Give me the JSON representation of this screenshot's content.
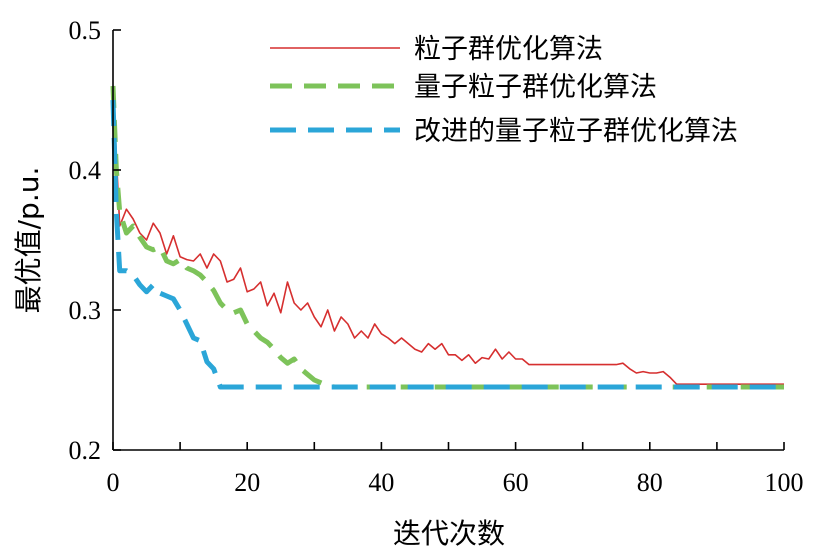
{
  "chart_data": {
    "type": "line",
    "title": "",
    "xlabel": "迭代次数",
    "ylabel": "最优值/p.u.",
    "xlim": [
      0,
      100
    ],
    "ylim": [
      0.2,
      0.5
    ],
    "xticks": [
      0,
      20,
      40,
      60,
      80,
      100
    ],
    "yticks": [
      0.2,
      0.3,
      0.4,
      0.5
    ],
    "xtick_labels": [
      "0",
      "20",
      "40",
      "60",
      "80",
      "100"
    ],
    "ytick_labels": [
      "0.2",
      "0.3",
      "0.4",
      "0.5"
    ],
    "grid": false,
    "legend_position": "top-right",
    "series": [
      {
        "name": "粒子群优化算法",
        "color": "#d62f2f",
        "style": "solid",
        "x": [
          0,
          1,
          2,
          3,
          4,
          5,
          6,
          7,
          8,
          9,
          10,
          11,
          12,
          13,
          14,
          15,
          16,
          17,
          18,
          19,
          20,
          21,
          22,
          23,
          24,
          25,
          26,
          27,
          28,
          29,
          30,
          31,
          32,
          33,
          34,
          35,
          36,
          37,
          38,
          39,
          40,
          41,
          42,
          43,
          44,
          45,
          46,
          47,
          48,
          49,
          50,
          51,
          52,
          53,
          54,
          55,
          56,
          57,
          58,
          59,
          60,
          61,
          62,
          65,
          70,
          75,
          76,
          77,
          78,
          79,
          80,
          81,
          82,
          83,
          84,
          90,
          100
        ],
        "y": [
          0.46,
          0.36,
          0.372,
          0.365,
          0.355,
          0.35,
          0.362,
          0.355,
          0.34,
          0.353,
          0.338,
          0.336,
          0.335,
          0.34,
          0.33,
          0.34,
          0.335,
          0.32,
          0.322,
          0.33,
          0.313,
          0.315,
          0.32,
          0.303,
          0.312,
          0.298,
          0.32,
          0.305,
          0.3,
          0.305,
          0.295,
          0.288,
          0.3,
          0.285,
          0.295,
          0.29,
          0.28,
          0.285,
          0.28,
          0.29,
          0.283,
          0.28,
          0.276,
          0.28,
          0.276,
          0.272,
          0.27,
          0.276,
          0.272,
          0.276,
          0.268,
          0.268,
          0.264,
          0.268,
          0.262,
          0.266,
          0.265,
          0.272,
          0.265,
          0.27,
          0.265,
          0.265,
          0.261,
          0.261,
          0.261,
          0.261,
          0.262,
          0.258,
          0.255,
          0.256,
          0.255,
          0.255,
          0.256,
          0.252,
          0.247,
          0.247,
          0.247
        ]
      },
      {
        "name": "量子粒子群优化算法",
        "color": "#7dc35a",
        "style": "dashed",
        "x": [
          0,
          0.5,
          1,
          2,
          3,
          4,
          5,
          6,
          7,
          8,
          9,
          10,
          11,
          12,
          13,
          14,
          15,
          16,
          17,
          18,
          19,
          20,
          21,
          22,
          23,
          24,
          25,
          26,
          27,
          28,
          29,
          30,
          31,
          32,
          33,
          40,
          50,
          60,
          70,
          80,
          90,
          100
        ],
        "y": [
          0.46,
          0.4,
          0.37,
          0.355,
          0.36,
          0.352,
          0.345,
          0.343,
          0.345,
          0.335,
          0.333,
          0.336,
          0.33,
          0.328,
          0.325,
          0.32,
          0.314,
          0.305,
          0.3,
          0.298,
          0.3,
          0.29,
          0.285,
          0.28,
          0.277,
          0.272,
          0.266,
          0.262,
          0.265,
          0.258,
          0.254,
          0.25,
          0.248,
          0.246,
          0.245,
          0.245,
          0.245,
          0.245,
          0.245,
          0.245,
          0.245,
          0.245
        ]
      },
      {
        "name": "改进的量子粒子群优化算法",
        "color": "#2ba6d8",
        "style": "dashed",
        "x": [
          0,
          0.5,
          1,
          2,
          3,
          4,
          5,
          6,
          7,
          8,
          9,
          10,
          11,
          12,
          13,
          14,
          15,
          16,
          17,
          20,
          30,
          40,
          50,
          60,
          70,
          80,
          90,
          100
        ],
        "y": [
          0.45,
          0.37,
          0.328,
          0.328,
          0.325,
          0.318,
          0.313,
          0.318,
          0.312,
          0.31,
          0.308,
          0.3,
          0.29,
          0.28,
          0.278,
          0.263,
          0.258,
          0.245,
          0.245,
          0.245,
          0.245,
          0.245,
          0.245,
          0.245,
          0.245,
          0.245,
          0.245,
          0.245
        ]
      }
    ]
  }
}
